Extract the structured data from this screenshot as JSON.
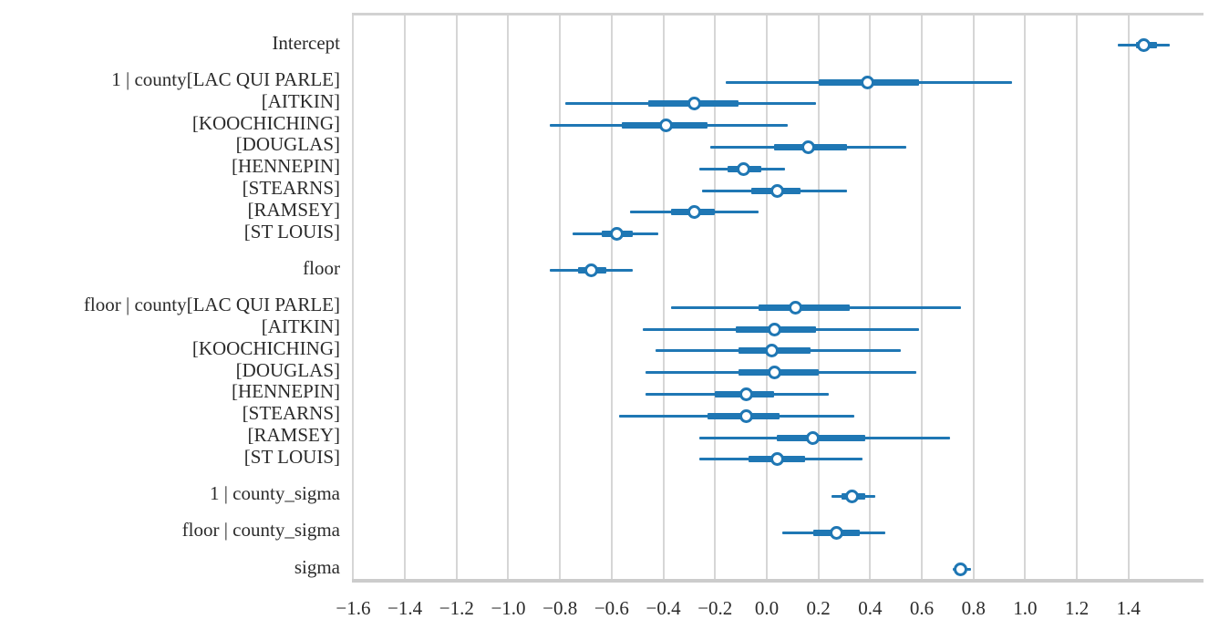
{
  "figure": {
    "background": "#ffffff",
    "accent_blue": "#1f77b4",
    "grid_color": "#d6d6d6",
    "spine_color": "#cccccc",
    "text_color": "#2b2b2b"
  },
  "chart_data": {
    "type": "forest",
    "orientation": "horizontal",
    "title": "",
    "xlabel": "",
    "ylabel": "",
    "grid": "vertical-only",
    "legend": "none",
    "point_marker": "open-circle",
    "xlim": [
      -1.605,
      1.69
    ],
    "x_ticks": [
      -1.6,
      -1.4,
      -1.2,
      -1.0,
      -0.8,
      -0.6,
      -0.4,
      -0.2,
      0.0,
      0.2,
      0.4,
      0.6,
      0.8,
      1.0,
      1.2,
      1.4
    ],
    "x_tick_labels": [
      "−1.6",
      "−1.4",
      "−1.2",
      "−1.0",
      "−0.8",
      "−0.6",
      "−0.4",
      "−0.2",
      "0.0",
      "0.2",
      "0.4",
      "0.6",
      "0.8",
      "1.0",
      "1.2",
      "1.4"
    ],
    "rows": [
      {
        "label": "Intercept",
        "new_group": true,
        "outer_interval": [
          1.36,
          1.56
        ],
        "inner_interval": [
          1.43,
          1.51
        ],
        "point": 1.46
      },
      {
        "label": "1 | county[LAC QUI PARLE]",
        "new_group": true,
        "outer_interval": [
          -0.16,
          0.95
        ],
        "inner_interval": [
          0.2,
          0.59
        ],
        "point": 0.39
      },
      {
        "label": "[AITKIN]",
        "new_group": false,
        "outer_interval": [
          -0.78,
          0.19
        ],
        "inner_interval": [
          -0.46,
          -0.11
        ],
        "point": -0.28
      },
      {
        "label": "[KOOCHICHING]",
        "new_group": false,
        "outer_interval": [
          -0.84,
          0.08
        ],
        "inner_interval": [
          -0.56,
          -0.23
        ],
        "point": -0.39
      },
      {
        "label": "[DOUGLAS]",
        "new_group": false,
        "outer_interval": [
          -0.22,
          0.54
        ],
        "inner_interval": [
          0.03,
          0.31
        ],
        "point": 0.16
      },
      {
        "label": "[HENNEPIN]",
        "new_group": false,
        "outer_interval": [
          -0.26,
          0.07
        ],
        "inner_interval": [
          -0.15,
          -0.02
        ],
        "point": -0.09
      },
      {
        "label": "[STEARNS]",
        "new_group": false,
        "outer_interval": [
          -0.25,
          0.31
        ],
        "inner_interval": [
          -0.06,
          0.13
        ],
        "point": 0.04
      },
      {
        "label": "[RAMSEY]",
        "new_group": false,
        "outer_interval": [
          -0.53,
          -0.03
        ],
        "inner_interval": [
          -0.37,
          -0.2
        ],
        "point": -0.28
      },
      {
        "label": "[ST LOUIS]",
        "new_group": false,
        "outer_interval": [
          -0.75,
          -0.42
        ],
        "inner_interval": [
          -0.64,
          -0.52
        ],
        "point": -0.58
      },
      {
        "label": "floor",
        "new_group": true,
        "outer_interval": [
          -0.84,
          -0.52
        ],
        "inner_interval": [
          -0.73,
          -0.62
        ],
        "point": -0.68
      },
      {
        "label": "floor | county[LAC QUI PARLE]",
        "new_group": true,
        "outer_interval": [
          -0.37,
          0.75
        ],
        "inner_interval": [
          -0.03,
          0.32
        ],
        "point": 0.11
      },
      {
        "label": "[AITKIN]",
        "new_group": false,
        "outer_interval": [
          -0.48,
          0.59
        ],
        "inner_interval": [
          -0.12,
          0.19
        ],
        "point": 0.03
      },
      {
        "label": "[KOOCHICHING]",
        "new_group": false,
        "outer_interval": [
          -0.43,
          0.52
        ],
        "inner_interval": [
          -0.11,
          0.17
        ],
        "point": 0.02
      },
      {
        "label": "[DOUGLAS]",
        "new_group": false,
        "outer_interval": [
          -0.47,
          0.58
        ],
        "inner_interval": [
          -0.11,
          0.2
        ],
        "point": 0.03
      },
      {
        "label": "[HENNEPIN]",
        "new_group": false,
        "outer_interval": [
          -0.47,
          0.24
        ],
        "inner_interval": [
          -0.2,
          0.03
        ],
        "point": -0.08
      },
      {
        "label": "[STEARNS]",
        "new_group": false,
        "outer_interval": [
          -0.57,
          0.34
        ],
        "inner_interval": [
          -0.23,
          0.05
        ],
        "point": -0.08
      },
      {
        "label": "[RAMSEY]",
        "new_group": false,
        "outer_interval": [
          -0.26,
          0.71
        ],
        "inner_interval": [
          0.04,
          0.38
        ],
        "point": 0.18
      },
      {
        "label": "[ST LOUIS]",
        "new_group": false,
        "outer_interval": [
          -0.26,
          0.37
        ],
        "inner_interval": [
          -0.07,
          0.15
        ],
        "point": 0.04
      },
      {
        "label": "1 | county_sigma",
        "new_group": true,
        "outer_interval": [
          0.25,
          0.42
        ],
        "inner_interval": [
          0.29,
          0.38
        ],
        "point": 0.33
      },
      {
        "label": "floor | county_sigma",
        "new_group": true,
        "outer_interval": [
          0.06,
          0.46
        ],
        "inner_interval": [
          0.18,
          0.36
        ],
        "point": 0.27
      },
      {
        "label": "sigma",
        "new_group": true,
        "outer_interval": [
          0.72,
          0.79
        ],
        "inner_interval": [
          0.73,
          0.77
        ],
        "point": 0.75
      }
    ]
  }
}
